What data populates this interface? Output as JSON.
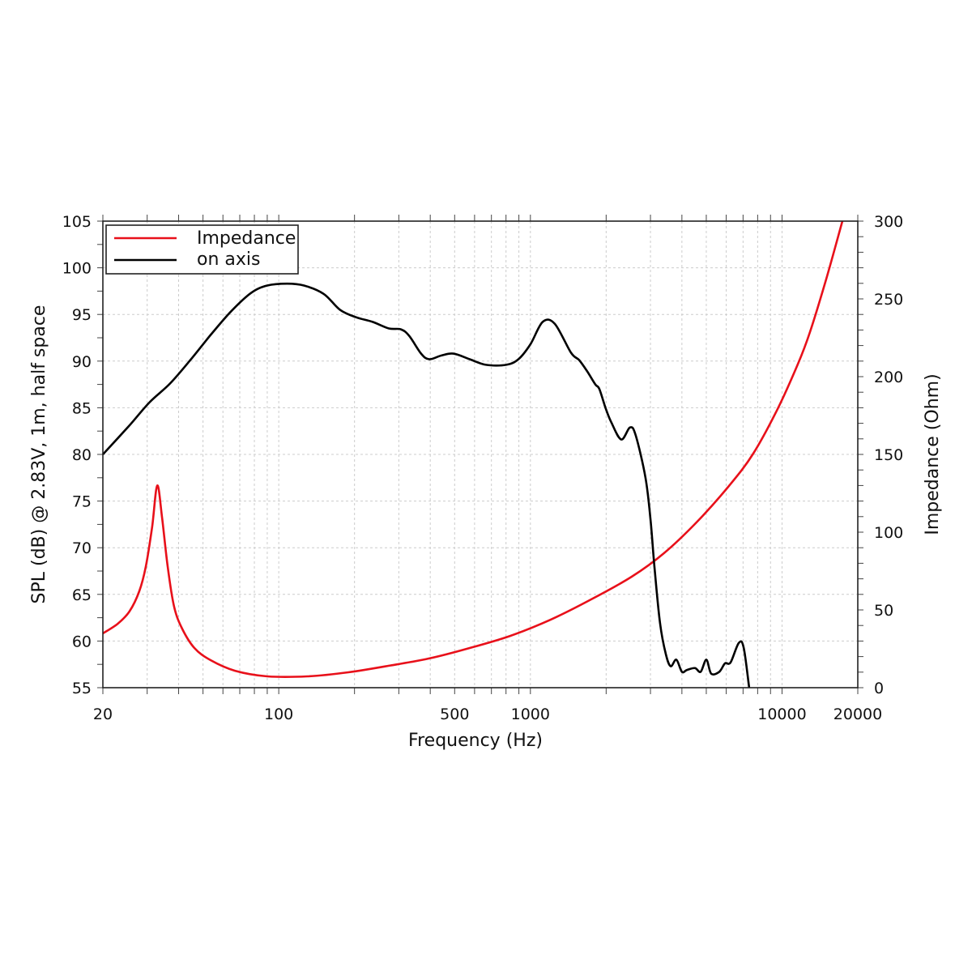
{
  "chart_data": {
    "type": "line",
    "xlabel": "Frequency (Hz)",
    "ylabel": "SPL (dB) @ 2.83V, 1m, half space",
    "y2label": "Impedance (Ohm)",
    "xscale": "log",
    "xlim": [
      20,
      20000
    ],
    "ylim": [
      55,
      105
    ],
    "y2lim": [
      0,
      300
    ],
    "grid": true,
    "legend_position": "top-left",
    "x_tick_labels": [
      "20",
      "100",
      "500",
      "1000",
      "10000",
      "20000"
    ],
    "x_ticks": [
      20,
      100,
      500,
      1000,
      10000,
      20000
    ],
    "y_ticks": [
      55,
      60,
      65,
      70,
      75,
      80,
      85,
      90,
      95,
      100,
      105
    ],
    "y2_ticks": [
      0,
      50,
      100,
      150,
      200,
      250,
      300
    ],
    "series": [
      {
        "name": "Impedance",
        "axis": "right",
        "color": "#e8101a",
        "x": [
          20,
          22.9,
          25.5,
          27.9,
          29.6,
          31.4,
          32.9,
          34.4,
          36.2,
          38.4,
          41.3,
          46.2,
          53.6,
          67,
          90,
          130,
          189,
          274,
          396,
          574,
          831,
          1205,
          1746,
          2530,
          3398,
          4571,
          6151,
          7680,
          9600,
          11540,
          12910,
          14970,
          17370
        ],
        "y": [
          34.9,
          41.1,
          49,
          62,
          77.6,
          103.6,
          130,
          108.9,
          77.6,
          52,
          38,
          25.5,
          17.7,
          10.9,
          7.3,
          7.3,
          9.9,
          14.1,
          18.8,
          25.5,
          33.3,
          43.8,
          56.8,
          71.4,
          86.5,
          106.3,
          129.7,
          150.5,
          179.2,
          207.8,
          228.6,
          262.5,
          300
        ]
      },
      {
        "name": "on axis",
        "axis": "left",
        "color": "#000000",
        "x": [
          20,
          25.5,
          30.7,
          37,
          44.5,
          53.6,
          64.5,
          77.6,
          90,
          108,
          126,
          151,
          175,
          203,
          236,
          274,
          306,
          330,
          368,
          396,
          443,
          495,
          574,
          666,
          801,
          896,
          1000,
          1119,
          1250,
          1450,
          1563,
          1682,
          1812,
          1880,
          1994,
          2100,
          2296,
          2490,
          2624,
          2866,
          3000,
          3112,
          3275,
          3452,
          3609,
          3802,
          4000,
          4188,
          4510,
          4748,
          5003,
          5230,
          5630,
          5933,
          6240,
          6730,
          7040,
          7400
        ],
        "y": [
          80,
          83.1,
          85.6,
          87.6,
          90.1,
          92.8,
          95.3,
          97.3,
          98.1,
          98.3,
          98.1,
          97.2,
          95.5,
          94.7,
          94.2,
          93.5,
          93.4,
          92.7,
          90.8,
          90.2,
          90.6,
          90.8,
          90.2,
          89.6,
          89.6,
          90.2,
          91.8,
          94.2,
          94.0,
          90.9,
          90.1,
          88.9,
          87.5,
          87.0,
          84.9,
          83.4,
          81.6,
          82.9,
          82.0,
          77.5,
          73.1,
          67.9,
          61.9,
          58.6,
          57.3,
          58.0,
          56.7,
          56.9,
          57.1,
          56.7,
          58.0,
          56.5,
          56.7,
          57.6,
          57.7,
          59.8,
          59.3,
          55
        ]
      }
    ]
  }
}
